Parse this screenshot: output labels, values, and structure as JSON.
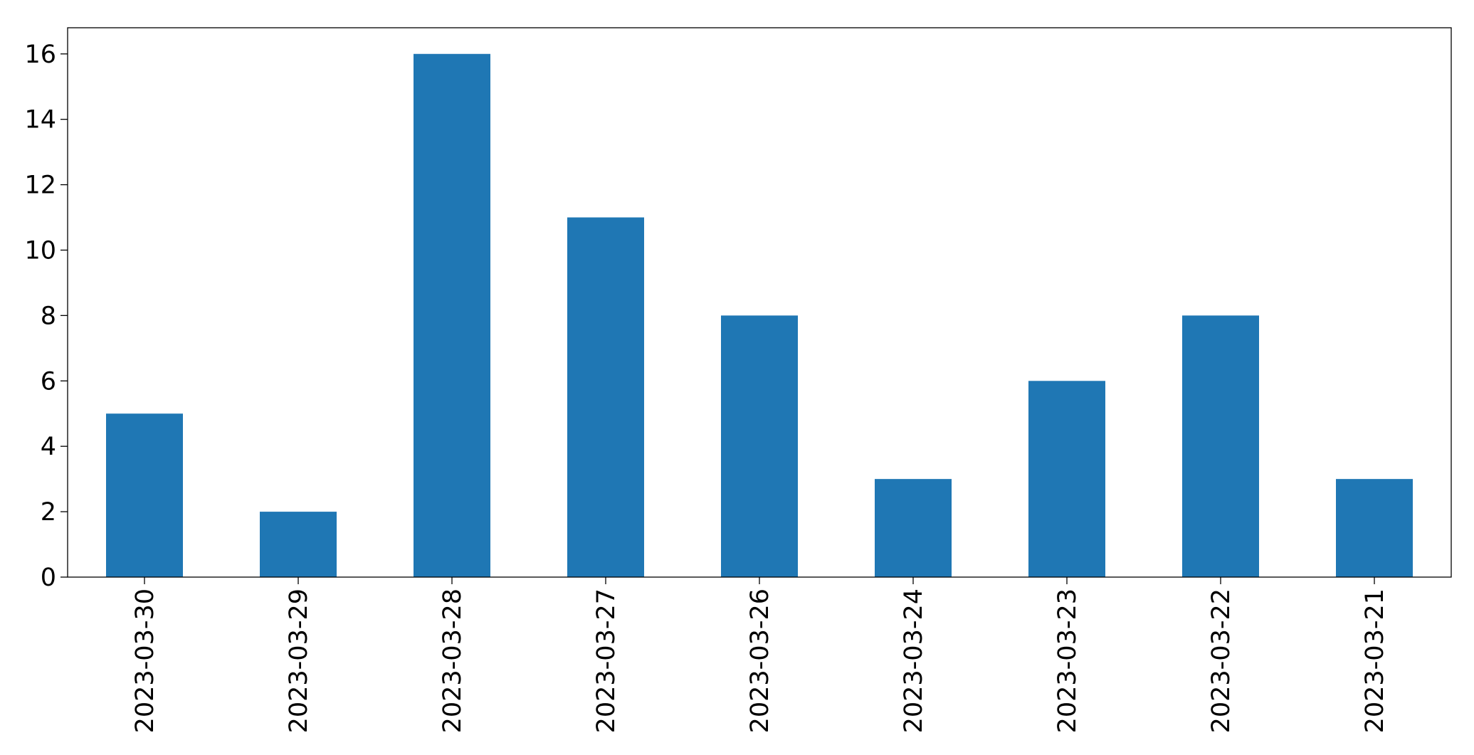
{
  "chart_data": {
    "type": "bar",
    "categories": [
      "2023-03-30",
      "2023-03-29",
      "2023-03-28",
      "2023-03-27",
      "2023-03-26",
      "2023-03-24",
      "2023-03-23",
      "2023-03-22",
      "2023-03-21"
    ],
    "values": [
      5,
      2,
      16,
      11,
      8,
      3,
      6,
      8,
      3
    ],
    "title": "",
    "xlabel": "",
    "ylabel": "",
    "ylim": [
      0,
      16.8
    ],
    "yticks": [
      0,
      2,
      4,
      6,
      8,
      10,
      12,
      14,
      16
    ],
    "grid": false,
    "legend": "none",
    "bar_color": "#1f77b4"
  }
}
